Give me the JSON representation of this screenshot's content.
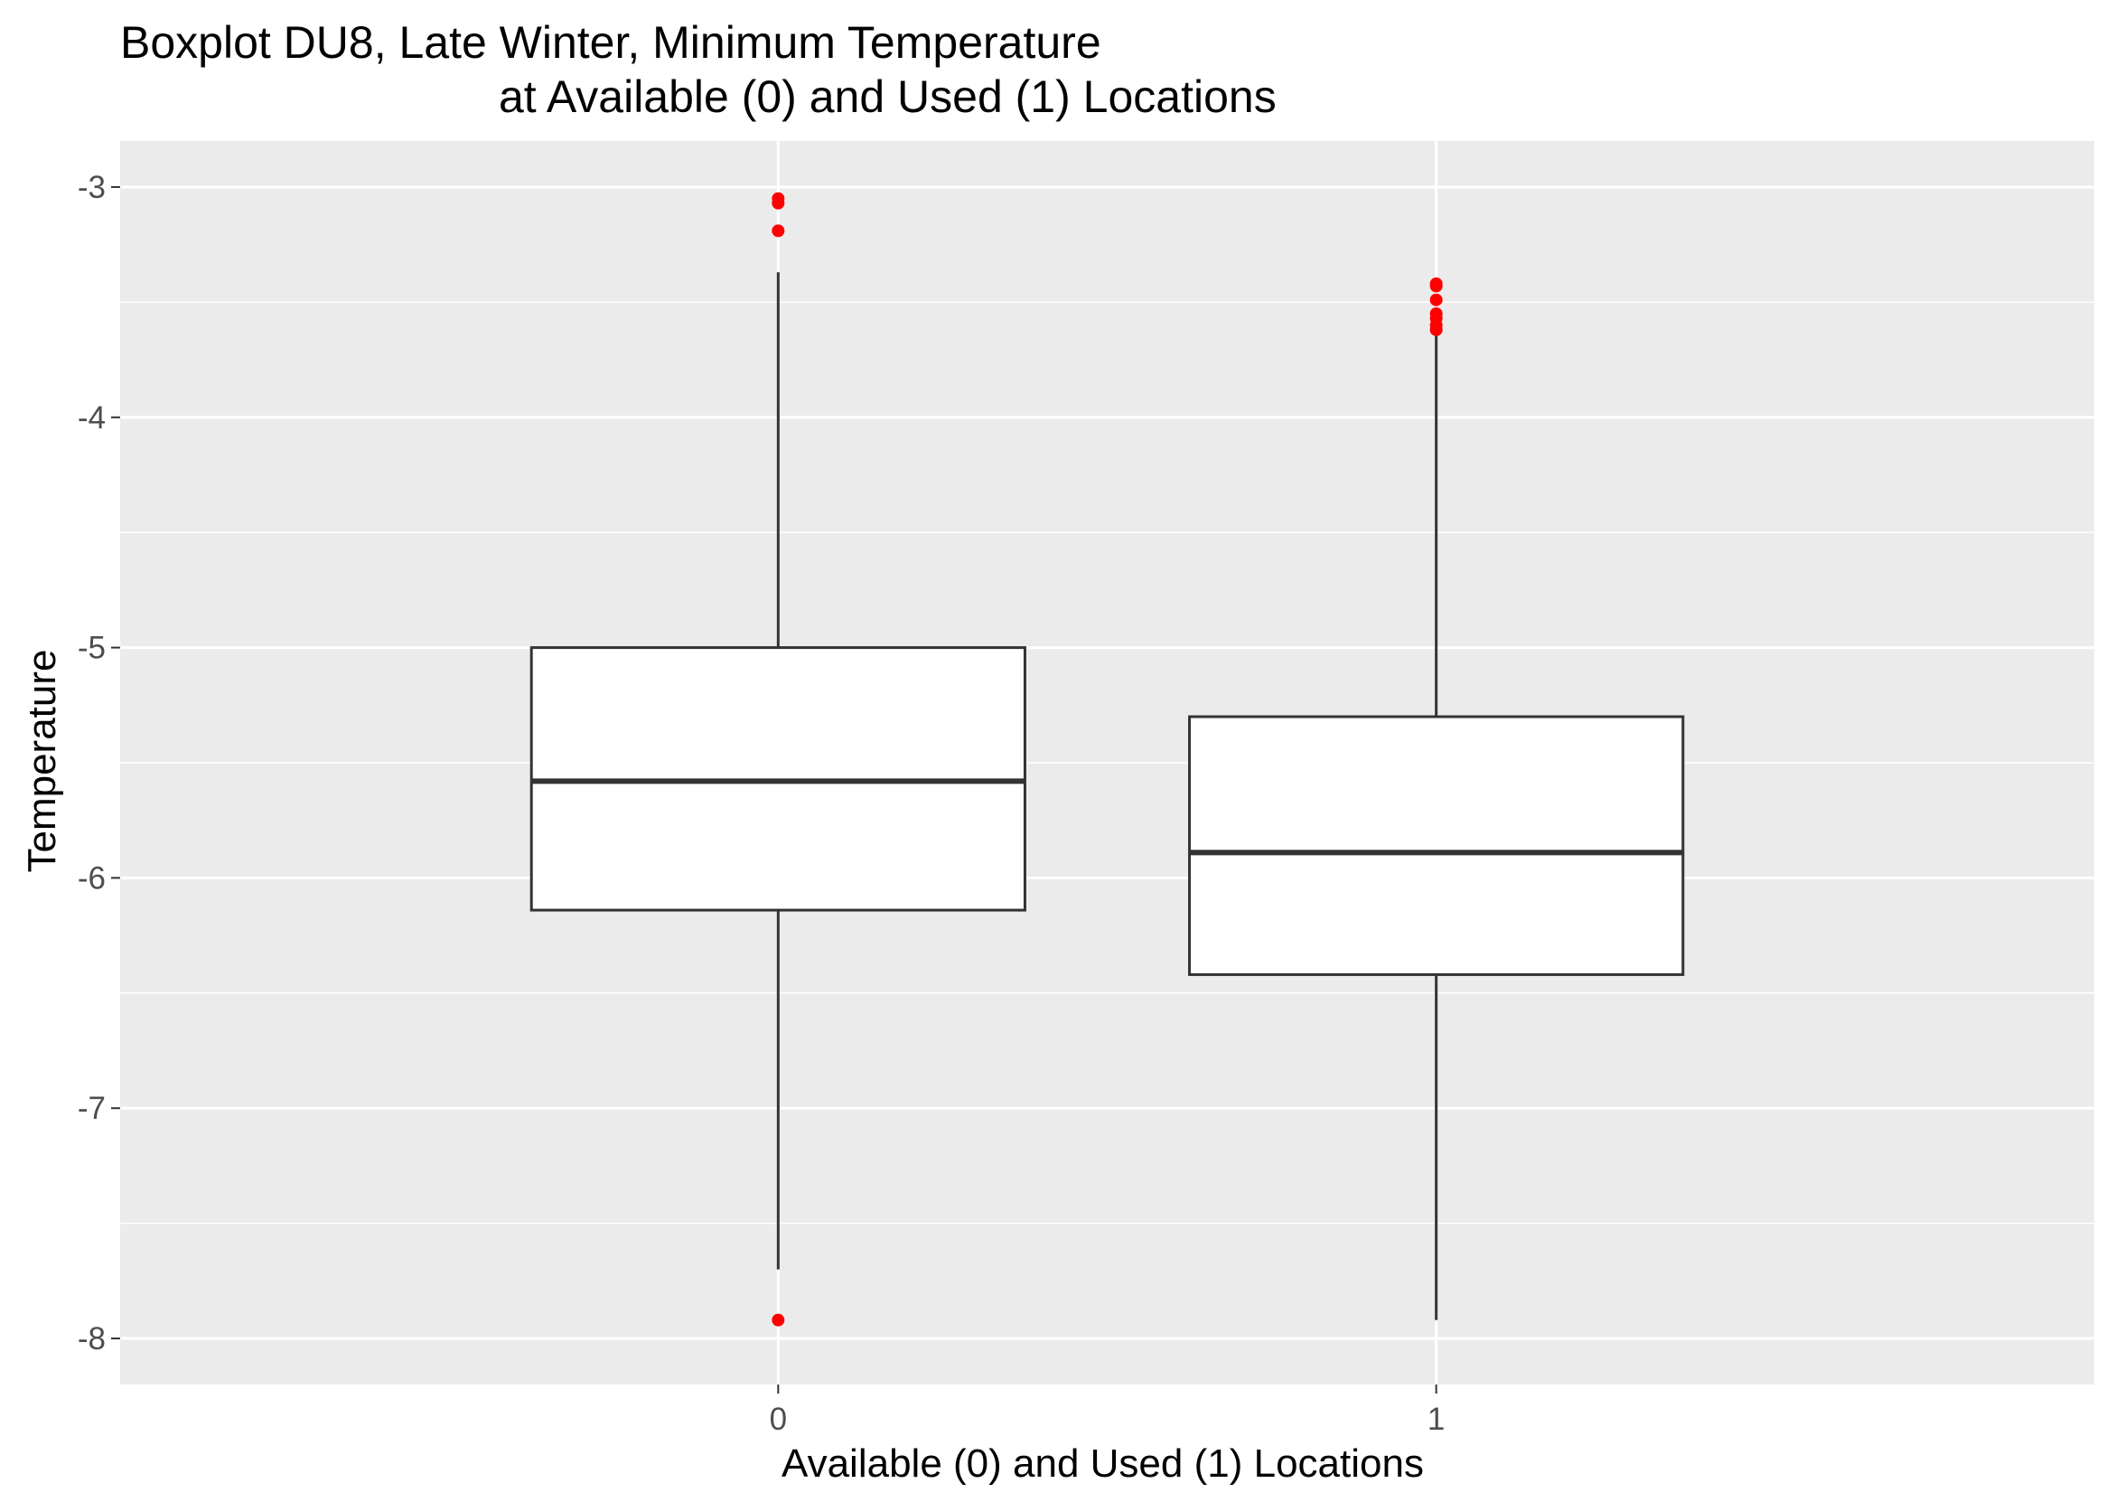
{
  "chart_data": {
    "type": "boxplot",
    "title_lines": [
      "Boxplot DU8, Late Winter, Minimum Temperature",
      "at Available (0) and Used (1) Locations"
    ],
    "xlabel": "Available (0) and Used (1) Locations",
    "ylabel": "Temperature",
    "ylim": [
      -8.2,
      -2.8
    ],
    "y_ticks": [
      -3,
      -4,
      -5,
      -6,
      -7,
      -8
    ],
    "y_tick_labels": [
      "-3",
      "-4",
      "-5",
      "-6",
      "-7",
      "-8"
    ],
    "y_minor_ticks": [
      -3.5,
      -4.5,
      -5.5,
      -6.5,
      -7.5
    ],
    "categories": [
      "0",
      "1"
    ],
    "boxes": [
      {
        "category": "0",
        "whisker_low": -7.7,
        "q1": -6.14,
        "median": -5.58,
        "q3": -5.0,
        "whisker_high": -3.37,
        "outliers": [
          -3.05,
          -3.07,
          -3.19,
          -7.92
        ]
      },
      {
        "category": "1",
        "whisker_low": -7.92,
        "q1": -6.42,
        "median": -5.89,
        "q3": -5.3,
        "whisker_high": -3.63,
        "outliers": [
          -3.42,
          -3.43,
          -3.49,
          -3.55,
          -3.57,
          -3.6,
          -3.62
        ]
      }
    ],
    "colors": {
      "panel": "#EBEBEB",
      "grid": "#FFFFFF",
      "box_fill": "#FFFFFF",
      "box_line": "#333333",
      "outlier": "#FF0000",
      "tick_text": "#4D4D4D"
    }
  }
}
